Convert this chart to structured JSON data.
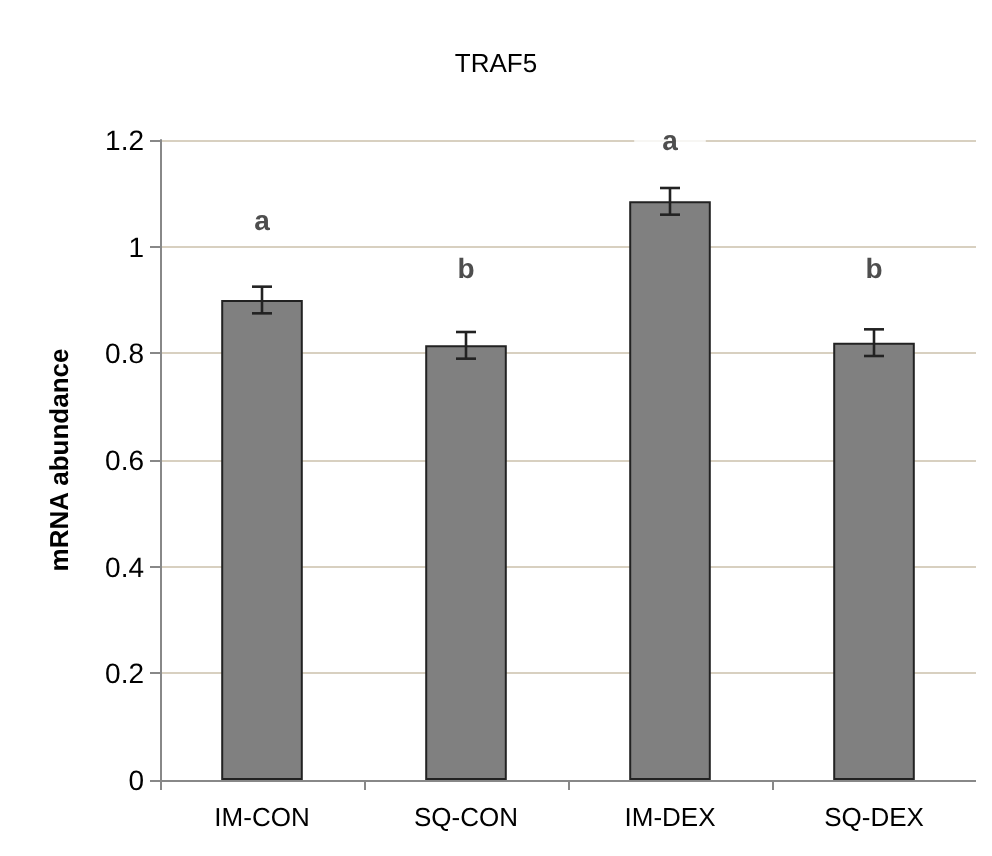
{
  "chart_data": {
    "type": "bar",
    "title": "TRAF5",
    "ylabel": "mRNA abundance",
    "categories": [
      "IM-CON",
      "SQ-CON",
      "IM-DEX",
      "SQ-DEX"
    ],
    "values": [
      0.9,
      0.815,
      1.085,
      0.82
    ],
    "color": "#808080",
    "errors": [
      0.025,
      0.025,
      0.025,
      0.025
    ],
    "ylim": [
      0,
      1.2
    ],
    "yticks": [
      0,
      0.2,
      0.4,
      0.6,
      0.8,
      1,
      1.2
    ],
    "grid": "y",
    "annotations": [
      {
        "text": "a",
        "x": "IM-CON",
        "y": 1.05
      },
      {
        "text": "b",
        "x": "SQ-CON",
        "y": 0.96
      },
      {
        "text": "a",
        "x": "IM-DEX",
        "y": 1.2
      },
      {
        "text": "b",
        "x": "SQ-DEX",
        "y": 0.96
      }
    ]
  }
}
